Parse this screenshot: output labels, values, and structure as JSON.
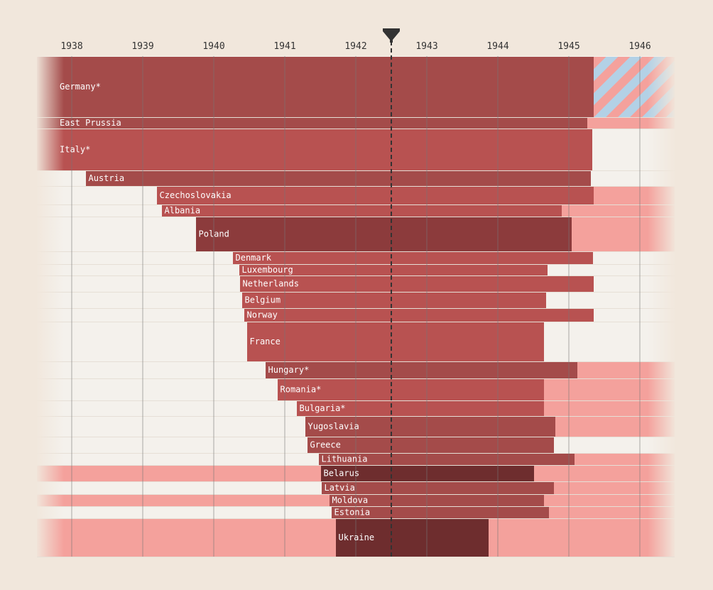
{
  "chart_data": {
    "type": "bar",
    "xlim": [
      1937.5,
      1946.5
    ],
    "ticks": [
      1938,
      1939,
      1940,
      1941,
      1942,
      1943,
      1944,
      1945,
      1946
    ],
    "marker": 1942.5,
    "colors": {
      "background": "#f1e7dc",
      "plot_background": "#f4f1ec",
      "pink": "#f4a19c",
      "red": "#b85251",
      "red_dark": "#a44b4a",
      "red_darker": "#8c3b3c",
      "red_darkest": "#6e2d2e",
      "stripe_blue": "#b3d1e6",
      "marker": "#333333",
      "grid": "#777777"
    },
    "rows": [
      {
        "name": "Germany*",
        "start": null,
        "end": 1945.35,
        "tone": "red_dark",
        "before": "",
        "after": "striped"
      },
      {
        "name": "East Prussia",
        "start": null,
        "end": 1945.26,
        "tone": "red_dark",
        "before": "",
        "after": "pink"
      },
      {
        "name": "Italy*",
        "start": null,
        "end": 1945.33,
        "tone": "red",
        "before": "",
        "after": ""
      },
      {
        "name": "Austria",
        "start": 1938.2,
        "end": 1945.31,
        "tone": "red_dark",
        "before": "",
        "after": ""
      },
      {
        "name": "Czechoslovakia",
        "start": 1939.2,
        "end": 1945.35,
        "tone": "red",
        "before": "",
        "after": "pink"
      },
      {
        "name": "Albania",
        "start": 1939.27,
        "end": 1944.9,
        "tone": "red",
        "before": "",
        "after": "pink"
      },
      {
        "name": "Poland",
        "start": 1939.75,
        "end": 1945.04,
        "tone": "red_darker",
        "before": "",
        "after": "pink"
      },
      {
        "name": "Denmark",
        "start": 1940.27,
        "end": 1945.34,
        "tone": "red",
        "before": "",
        "after": ""
      },
      {
        "name": "Luxembourg",
        "start": 1940.36,
        "end": 1944.7,
        "tone": "red",
        "before": "",
        "after": ""
      },
      {
        "name": "Netherlands",
        "start": 1940.37,
        "end": 1945.35,
        "tone": "red",
        "before": "",
        "after": ""
      },
      {
        "name": "Belgium",
        "start": 1940.4,
        "end": 1944.68,
        "tone": "red",
        "before": "",
        "after": ""
      },
      {
        "name": "Norway",
        "start": 1940.43,
        "end": 1945.35,
        "tone": "red",
        "before": "",
        "after": ""
      },
      {
        "name": "France",
        "start": 1940.47,
        "end": 1944.65,
        "tone": "red",
        "before": "",
        "after": ""
      },
      {
        "name": "Hungary*",
        "start": 1940.73,
        "end": 1945.12,
        "tone": "red_dark",
        "before": "",
        "after": "pink"
      },
      {
        "name": "Romania*",
        "start": 1940.9,
        "end": 1944.65,
        "tone": "red",
        "before": "",
        "after": "pink"
      },
      {
        "name": "Bulgaria*",
        "start": 1941.17,
        "end": 1944.65,
        "tone": "red",
        "before": "",
        "after": "pink"
      },
      {
        "name": "Yugoslavia",
        "start": 1941.29,
        "end": 1944.81,
        "tone": "red_dark",
        "before": "",
        "after": "pink"
      },
      {
        "name": "Greece",
        "start": 1941.32,
        "end": 1944.79,
        "tone": "red_dark",
        "before": "",
        "after": ""
      },
      {
        "name": "Lithuania",
        "start": 1941.48,
        "end": 1945.08,
        "tone": "red_dark",
        "before": "",
        "after": "pink"
      },
      {
        "name": "Belarus",
        "start": 1941.51,
        "end": 1944.51,
        "tone": "red_darkest",
        "before": "pink",
        "after": "pink"
      },
      {
        "name": "Latvia",
        "start": 1941.52,
        "end": 1944.79,
        "tone": "red_dark",
        "before": "",
        "after": "pink"
      },
      {
        "name": "Moldova",
        "start": 1941.63,
        "end": 1944.65,
        "tone": "red_dark",
        "before": "pink",
        "after": "pink"
      },
      {
        "name": "Estonia",
        "start": 1941.66,
        "end": 1944.72,
        "tone": "red_dark",
        "before": "",
        "after": "pink"
      },
      {
        "name": "Ukraine",
        "start": 1941.72,
        "end": 1943.87,
        "tone": "red_darkest",
        "before": "pink",
        "after": "pink"
      }
    ]
  }
}
